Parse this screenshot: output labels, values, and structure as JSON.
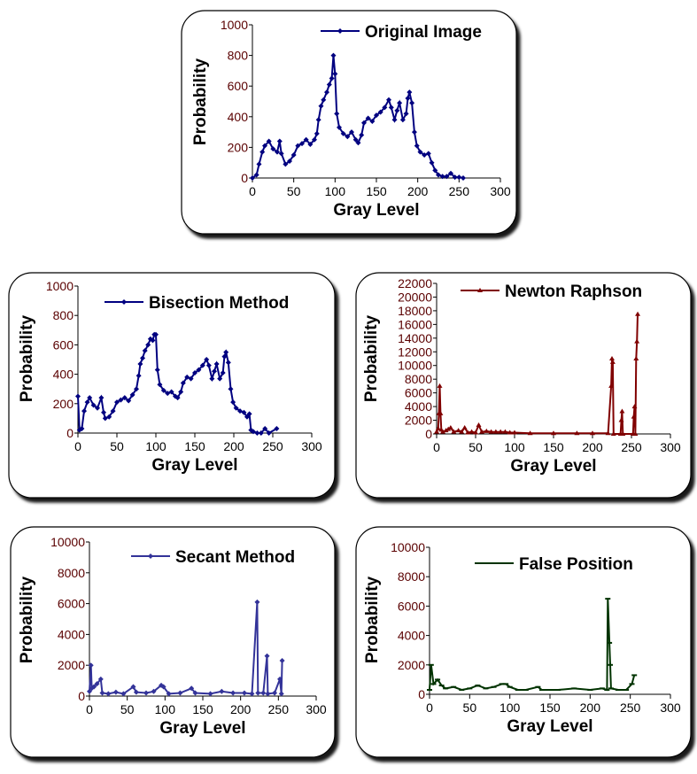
{
  "chart_data": [
    {
      "id": "original",
      "type": "line",
      "title": "",
      "xlabel": "Gray Level",
      "ylabel": "Probability",
      "xlim": [
        0,
        300
      ],
      "ylim": [
        0,
        1000
      ],
      "xticks": [
        0,
        50,
        100,
        150,
        200,
        250,
        300
      ],
      "yticks": [
        0,
        200,
        400,
        600,
        800,
        1000
      ],
      "grid": false,
      "legend": "top-right",
      "series": [
        {
          "name": "Original Image",
          "color": "#000080",
          "marker": "diamond",
          "x": [
            0,
            5,
            8,
            12,
            15,
            20,
            25,
            30,
            33,
            35,
            40,
            45,
            50,
            55,
            60,
            65,
            70,
            75,
            78,
            80,
            83,
            86,
            90,
            93,
            96,
            98,
            100,
            102,
            105,
            110,
            115,
            120,
            125,
            128,
            132,
            135,
            140,
            145,
            150,
            155,
            160,
            165,
            168,
            172,
            175,
            178,
            182,
            186,
            188,
            190,
            193,
            196,
            199,
            203,
            208,
            213,
            217,
            221,
            225,
            230,
            235,
            240,
            245,
            250,
            255
          ],
          "y": [
            0,
            20,
            90,
            170,
            210,
            240,
            190,
            170,
            240,
            160,
            90,
            110,
            150,
            210,
            225,
            250,
            220,
            250,
            290,
            380,
            470,
            510,
            560,
            610,
            650,
            800,
            680,
            420,
            330,
            290,
            270,
            300,
            250,
            230,
            280,
            360,
            390,
            370,
            410,
            430,
            460,
            510,
            460,
            380,
            440,
            490,
            380,
            420,
            520,
            560,
            490,
            300,
            210,
            170,
            150,
            160,
            100,
            50,
            20,
            10,
            10,
            30,
            5,
            5,
            0
          ]
        }
      ]
    },
    {
      "id": "bisection",
      "type": "line",
      "title": "",
      "xlabel": "Gray Level",
      "ylabel": "Probability",
      "xlim": [
        0,
        300
      ],
      "ylim": [
        0,
        1000
      ],
      "xticks": [
        0,
        50,
        100,
        150,
        200,
        250,
        300
      ],
      "yticks": [
        0,
        200,
        400,
        600,
        800,
        1000
      ],
      "grid": false,
      "legend": "top-right",
      "series": [
        {
          "name": "Bisection Method",
          "color": "#000080",
          "marker": "diamond",
          "x": [
            0,
            2,
            5,
            8,
            12,
            15,
            20,
            25,
            30,
            33,
            35,
            40,
            45,
            50,
            55,
            60,
            65,
            70,
            75,
            78,
            80,
            83,
            86,
            90,
            93,
            96,
            98,
            100,
            102,
            105,
            110,
            115,
            120,
            125,
            128,
            132,
            135,
            140,
            145,
            150,
            155,
            160,
            165,
            168,
            172,
            175,
            178,
            182,
            186,
            188,
            190,
            193,
            196,
            199,
            203,
            208,
            213,
            217,
            220,
            222,
            225,
            230,
            235,
            240,
            245,
            255
          ],
          "y": [
            250,
            20,
            30,
            150,
            210,
            240,
            190,
            170,
            240,
            140,
            100,
            110,
            150,
            210,
            225,
            240,
            220,
            260,
            300,
            390,
            470,
            510,
            560,
            600,
            640,
            630,
            670,
            670,
            430,
            330,
            290,
            270,
            280,
            250,
            240,
            280,
            340,
            380,
            370,
            410,
            430,
            460,
            500,
            460,
            370,
            420,
            470,
            370,
            410,
            520,
            550,
            480,
            300,
            210,
            170,
            150,
            140,
            110,
            130,
            20,
            10,
            0,
            0,
            30,
            0,
            30
          ]
        }
      ]
    },
    {
      "id": "newton",
      "type": "line",
      "title": "",
      "xlabel": "Gray Level",
      "ylabel": "Probability",
      "xlim": [
        0,
        300
      ],
      "ylim": [
        0,
        22000
      ],
      "xticks": [
        0,
        50,
        100,
        150,
        200,
        250,
        300
      ],
      "yticks": [
        0,
        2000,
        4000,
        6000,
        8000,
        10000,
        12000,
        14000,
        16000,
        18000,
        20000,
        22000
      ],
      "grid": false,
      "legend": "top-right",
      "series": [
        {
          "name": "Newton Raphson",
          "color": "#800000",
          "marker": "triangle",
          "x": [
            0,
            2,
            3,
            4,
            5,
            6,
            8,
            12,
            15,
            18,
            22,
            28,
            32,
            36,
            40,
            45,
            50,
            54,
            58,
            64,
            70,
            76,
            82,
            88,
            94,
            100,
            120,
            150,
            180,
            200,
            220,
            224,
            225,
            226,
            227,
            236,
            237,
            238,
            239,
            252,
            253,
            254,
            255,
            256,
            257,
            258
          ],
          "y": [
            300,
            800,
            3000,
            7000,
            3000,
            600,
            300,
            500,
            700,
            900,
            300,
            500,
            300,
            900,
            200,
            300,
            200,
            1300,
            300,
            400,
            300,
            300,
            300,
            300,
            200,
            200,
            100,
            100,
            100,
            100,
            100,
            7000,
            11000,
            10500,
            0,
            0,
            2000,
            3300,
            0,
            0,
            2500,
            4000,
            0,
            11000,
            13500,
            17500
          ]
        }
      ]
    },
    {
      "id": "secant",
      "type": "line",
      "title": "",
      "xlabel": "Gray Level",
      "ylabel": "Probability",
      "xlim": [
        0,
        300
      ],
      "ylim": [
        0,
        10000
      ],
      "xticks": [
        0,
        50,
        100,
        150,
        200,
        250,
        300
      ],
      "yticks": [
        0,
        2000,
        4000,
        6000,
        8000,
        10000
      ],
      "grid": false,
      "legend": "top-right",
      "series": [
        {
          "name": "Secant Method",
          "color": "#333399",
          "marker": "diamond",
          "x": [
            0,
            2,
            3,
            6,
            10,
            15,
            17,
            25,
            35,
            45,
            58,
            62,
            75,
            85,
            95,
            98,
            105,
            120,
            135,
            140,
            160,
            175,
            190,
            205,
            215,
            222,
            223,
            230,
            235,
            236,
            245,
            252,
            254,
            255
          ],
          "y": [
            300,
            2000,
            500,
            600,
            800,
            1100,
            200,
            150,
            250,
            150,
            600,
            250,
            200,
            300,
            700,
            600,
            150,
            200,
            500,
            200,
            150,
            300,
            200,
            200,
            150,
            6100,
            200,
            200,
            2600,
            150,
            200,
            1100,
            150,
            2300
          ]
        }
      ]
    },
    {
      "id": "false-position",
      "type": "line",
      "title": "",
      "xlabel": "Gray Level",
      "ylabel": "Probability",
      "xlim": [
        0,
        300
      ],
      "ylim": [
        0,
        10000
      ],
      "xticks": [
        0,
        50,
        100,
        150,
        200,
        250,
        300
      ],
      "yticks": [
        0,
        2000,
        4000,
        6000,
        8000,
        10000
      ],
      "grid": false,
      "legend": "top-right",
      "series": [
        {
          "name": "False Position",
          "color": "#003300",
          "marker": "dash",
          "x": [
            0,
            2,
            5,
            10,
            15,
            20,
            30,
            40,
            50,
            60,
            70,
            80,
            90,
            95,
            100,
            110,
            120,
            135,
            140,
            160,
            180,
            200,
            215,
            221,
            222,
            224,
            225,
            226,
            235,
            245,
            252,
            255
          ],
          "y": [
            300,
            2000,
            700,
            1000,
            600,
            400,
            500,
            300,
            400,
            600,
            400,
            500,
            700,
            700,
            500,
            300,
            300,
            500,
            300,
            300,
            400,
            300,
            400,
            300,
            6500,
            3500,
            2000,
            400,
            300,
            300,
            700,
            1300
          ]
        }
      ]
    }
  ]
}
